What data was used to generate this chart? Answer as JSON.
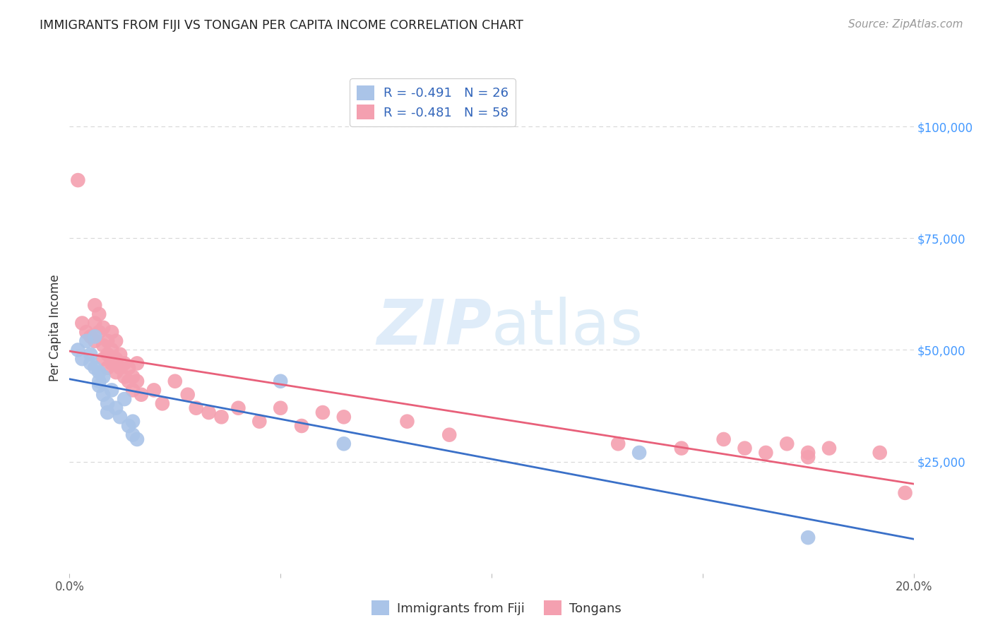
{
  "title": "IMMIGRANTS FROM FIJI VS TONGAN PER CAPITA INCOME CORRELATION CHART",
  "source": "Source: ZipAtlas.com",
  "ylabel": "Per Capita Income",
  "xlim": [
    0.0,
    0.2
  ],
  "ylim": [
    0,
    110000
  ],
  "yticks": [
    0,
    25000,
    50000,
    75000,
    100000
  ],
  "ytick_labels": [
    "",
    "$25,000",
    "$50,000",
    "$75,000",
    "$100,000"
  ],
  "xticks": [
    0.0,
    0.05,
    0.1,
    0.15,
    0.2
  ],
  "xtick_labels": [
    "0.0%",
    "",
    "",
    "",
    "20.0%"
  ],
  "background_color": "#ffffff",
  "grid_color": "#d8d8d8",
  "fiji_color": "#aac4e8",
  "tongan_color": "#f4a0b0",
  "fiji_line_color": "#3a70c8",
  "tongan_line_color": "#e8607a",
  "fiji_R": "-0.491",
  "fiji_N": "26",
  "tongan_R": "-0.481",
  "tongan_N": "58",
  "watermark_zip": "ZIP",
  "watermark_atlas": "atlas",
  "fiji_x": [
    0.002,
    0.003,
    0.004,
    0.005,
    0.005,
    0.006,
    0.006,
    0.007,
    0.007,
    0.007,
    0.008,
    0.008,
    0.009,
    0.009,
    0.01,
    0.011,
    0.012,
    0.013,
    0.014,
    0.015,
    0.015,
    0.016,
    0.05,
    0.065,
    0.135,
    0.175
  ],
  "fiji_y": [
    50000,
    48000,
    52000,
    49000,
    47000,
    53000,
    46000,
    45000,
    43000,
    42000,
    44000,
    40000,
    38000,
    36000,
    41000,
    37000,
    35000,
    39000,
    33000,
    31000,
    34000,
    30000,
    43000,
    29000,
    27000,
    8000
  ],
  "tongan_x": [
    0.002,
    0.003,
    0.004,
    0.005,
    0.006,
    0.006,
    0.006,
    0.007,
    0.007,
    0.008,
    0.008,
    0.008,
    0.009,
    0.009,
    0.009,
    0.01,
    0.01,
    0.01,
    0.011,
    0.011,
    0.011,
    0.012,
    0.012,
    0.013,
    0.013,
    0.014,
    0.014,
    0.015,
    0.015,
    0.016,
    0.016,
    0.017,
    0.02,
    0.022,
    0.025,
    0.028,
    0.03,
    0.033,
    0.036,
    0.04,
    0.045,
    0.05,
    0.055,
    0.06,
    0.065,
    0.08,
    0.09,
    0.13,
    0.145,
    0.155,
    0.16,
    0.165,
    0.17,
    0.175,
    0.175,
    0.18,
    0.192,
    0.198
  ],
  "tongan_y": [
    88000,
    56000,
    54000,
    53000,
    60000,
    56000,
    52000,
    58000,
    54000,
    55000,
    51000,
    48000,
    52000,
    49000,
    46000,
    54000,
    50000,
    47000,
    52000,
    48000,
    45000,
    49000,
    46000,
    47000,
    44000,
    46000,
    43000,
    44000,
    41000,
    47000,
    43000,
    40000,
    41000,
    38000,
    43000,
    40000,
    37000,
    36000,
    35000,
    37000,
    34000,
    37000,
    33000,
    36000,
    35000,
    34000,
    31000,
    29000,
    28000,
    30000,
    28000,
    27000,
    29000,
    27000,
    26000,
    28000,
    27000,
    18000
  ]
}
